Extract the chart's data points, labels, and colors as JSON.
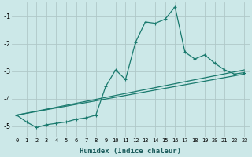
{
  "xlabel": "Humidex (Indice chaleur)",
  "background_color": "#cce8e8",
  "grid_color": "#b0c8c8",
  "line_color": "#1a7a6e",
  "xlim": [
    -0.5,
    23.5
  ],
  "ylim": [
    -5.4,
    -0.5
  ],
  "yticks": [
    -5,
    -4,
    -3,
    -2,
    -1
  ],
  "xticks": [
    0,
    1,
    2,
    3,
    4,
    5,
    6,
    7,
    8,
    9,
    10,
    11,
    12,
    13,
    14,
    15,
    16,
    17,
    18,
    19,
    20,
    21,
    22,
    23
  ],
  "series1_x": [
    0,
    1,
    2,
    3,
    4,
    5,
    6,
    7,
    8,
    9,
    10,
    11,
    12,
    13,
    14,
    15,
    16,
    17,
    18,
    19,
    20,
    21,
    22,
    23
  ],
  "series1_y": [
    -4.6,
    -4.85,
    -5.05,
    -4.95,
    -4.9,
    -4.85,
    -4.75,
    -4.7,
    -4.6,
    -3.55,
    -2.95,
    -3.3,
    -1.95,
    -1.2,
    -1.25,
    -1.1,
    -0.65,
    -2.3,
    -2.55,
    -2.4,
    -2.7,
    -2.95,
    -3.1,
    -3.05
  ],
  "series2_x": [
    0,
    23
  ],
  "series2_y": [
    -4.6,
    -2.95
  ],
  "series3_x": [
    0,
    23
  ],
  "series3_y": [
    -4.6,
    -3.1
  ]
}
